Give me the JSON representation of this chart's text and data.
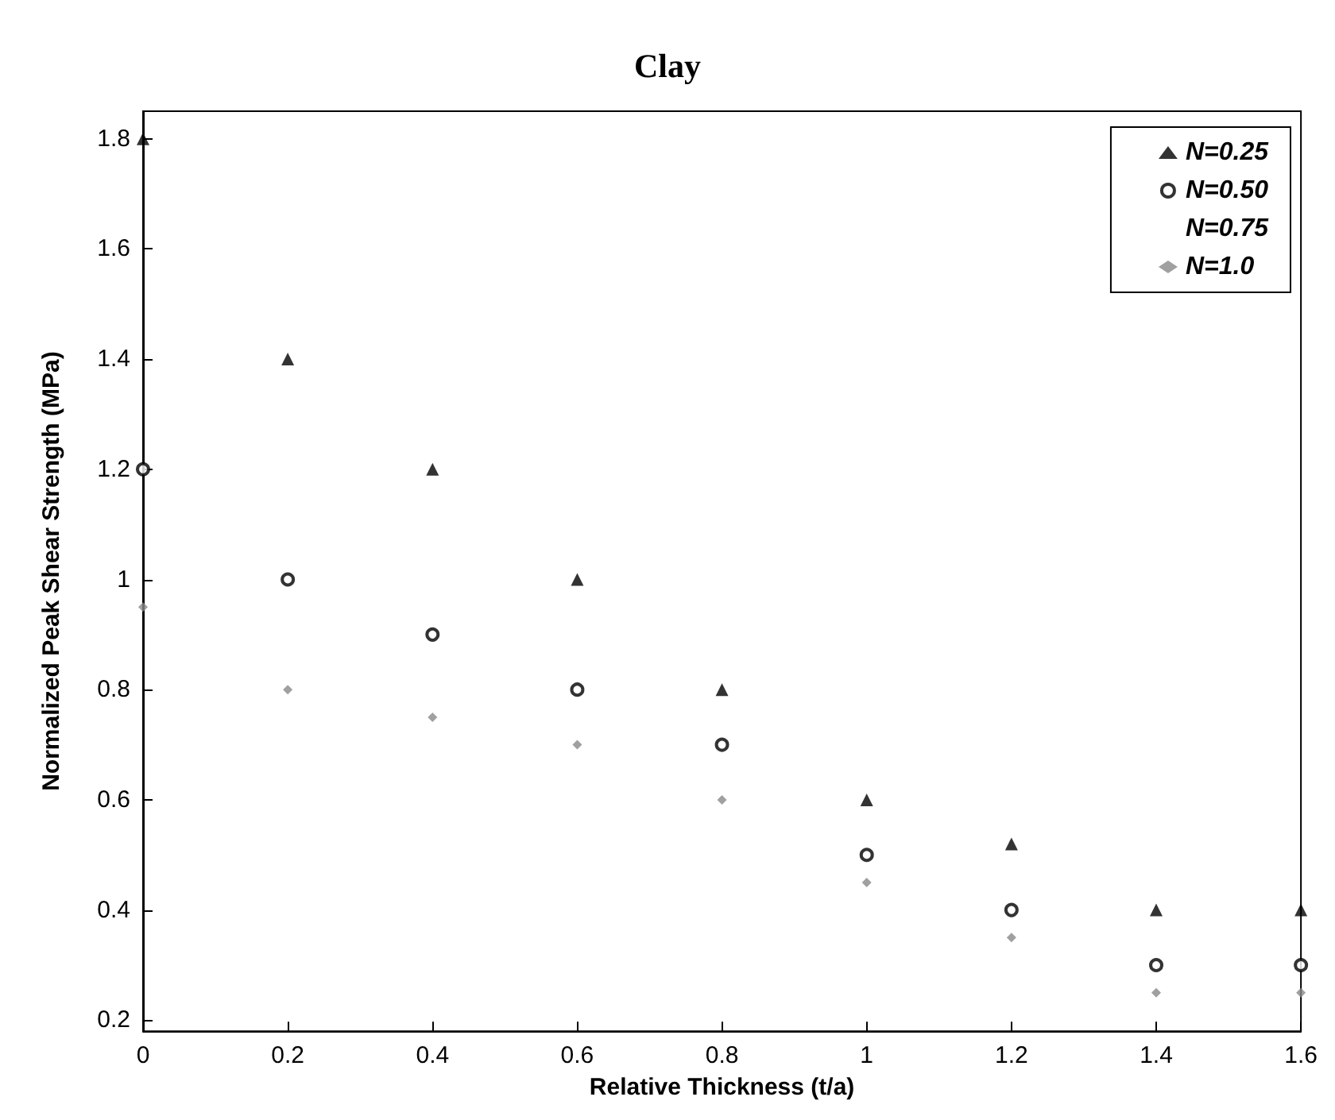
{
  "chart_data": {
    "type": "scatter",
    "title": "Clay",
    "xlabel": "Relative Thickness (t/a)",
    "ylabel": "Normalized Peak Shear Strength (MPa)",
    "x": [
      0,
      0.2,
      0.4,
      0.6,
      0.8,
      1,
      1.2,
      1.4,
      1.6
    ],
    "series": [
      {
        "name": "N=0.25",
        "color": "#000000",
        "marker": "triangle",
        "values": [
          1.8,
          1.4,
          1.2,
          1.0,
          0.8,
          0.6,
          0.52,
          0.4,
          0.4
        ]
      },
      {
        "name": "N=0.50",
        "color": "#000000",
        "marker": "circle",
        "values": [
          1.2,
          1.0,
          0.9,
          0.8,
          0.7,
          0.5,
          0.4,
          0.3,
          0.3
        ]
      },
      {
        "name": "N=0.75",
        "color": "#000000",
        "marker": "none",
        "values": [
          null,
          null,
          null,
          null,
          null,
          null,
          null,
          null,
          null
        ]
      },
      {
        "name": "N=1.0",
        "color": "#888888",
        "marker": "diamond",
        "values": [
          0.95,
          0.8,
          0.75,
          0.7,
          0.6,
          0.45,
          0.35,
          0.25,
          0.25
        ]
      }
    ],
    "xlim": [
      0,
      1.6
    ],
    "xticks": [
      0,
      0.2,
      0.4,
      0.6,
      0.8,
      1,
      1.2,
      1.4,
      1.6
    ],
    "ylim": [
      0.18,
      1.85
    ],
    "yticks": [
      0.2,
      0.4,
      0.6,
      0.8,
      1,
      1.2,
      1.4,
      1.6,
      1.8
    ],
    "grid": false,
    "legend": "top right"
  }
}
